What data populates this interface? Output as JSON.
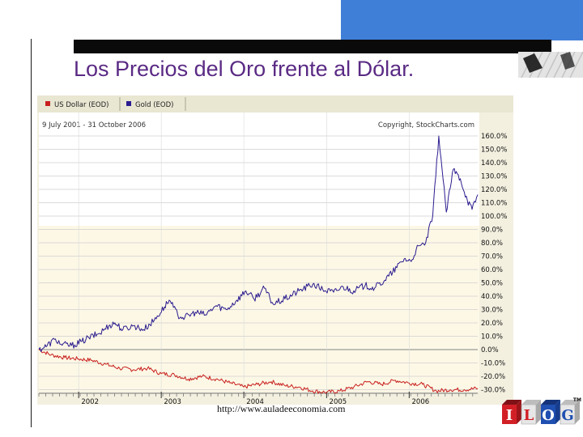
{
  "slide": {
    "title": "Los Precios del Oro frente al Dólar.",
    "url": "http://www.auladeeconomia.com",
    "logo_letters": [
      "I",
      "L",
      "O",
      "G"
    ],
    "logo_tm": "TM"
  },
  "colors": {
    "title": "#5a2a84",
    "gold_series": "#2b1c8f",
    "dollar_series": "#c8201e",
    "blue_block": "#3f7fd8",
    "logo_red": "#d21f26",
    "logo_blue": "#1f4fb0"
  },
  "chart_data": {
    "type": "line",
    "title": "9 July 2001 - 31 October 2006",
    "copyright": "Copyright, StockCharts.com",
    "y_unit": "%",
    "ylim": [
      -35,
      165
    ],
    "y_ticks": [
      "160.0%",
      "150.0%",
      "140.0%",
      "130.0%",
      "120.0%",
      "110.0%",
      "100.0%",
      "90.0%",
      "80.0%",
      "70.0%",
      "60.0%",
      "50.0%",
      "40.0%",
      "30.0%",
      "20.0%",
      "10.0%",
      "0.0%",
      "-10.0%",
      "-20.0%",
      "-30.0%"
    ],
    "x_range": [
      "2001-07-09",
      "2006-10-31"
    ],
    "x_ticks": [
      "2002",
      "2003",
      "2004",
      "2005",
      "2006"
    ],
    "grid": true,
    "legend_placement": "top-left",
    "series": [
      {
        "name": "US Dollar (EOD)",
        "points": [
          [
            "2001-07-09",
            0
          ],
          [
            "2001-09-01",
            -4
          ],
          [
            "2001-11-01",
            -6
          ],
          [
            "2002-01-01",
            -7
          ],
          [
            "2002-03-01",
            -8
          ],
          [
            "2002-05-01",
            -11
          ],
          [
            "2002-07-01",
            -14
          ],
          [
            "2002-09-01",
            -15
          ],
          [
            "2002-11-01",
            -14
          ],
          [
            "2003-01-01",
            -18
          ],
          [
            "2003-03-01",
            -19
          ],
          [
            "2003-05-01",
            -22
          ],
          [
            "2003-07-01",
            -20
          ],
          [
            "2003-09-01",
            -22
          ],
          [
            "2003-11-01",
            -25
          ],
          [
            "2004-01-01",
            -28
          ],
          [
            "2004-03-01",
            -26
          ],
          [
            "2004-05-01",
            -24
          ],
          [
            "2004-07-01",
            -27
          ],
          [
            "2004-09-01",
            -28
          ],
          [
            "2004-11-01",
            -31
          ],
          [
            "2005-01-01",
            -32
          ],
          [
            "2005-03-01",
            -31
          ],
          [
            "2005-05-01",
            -28
          ],
          [
            "2005-07-01",
            -24
          ],
          [
            "2005-09-01",
            -26
          ],
          [
            "2005-11-01",
            -23
          ],
          [
            "2006-01-01",
            -25
          ],
          [
            "2006-03-01",
            -26
          ],
          [
            "2006-05-01",
            -31
          ],
          [
            "2006-07-01",
            -30
          ],
          [
            "2006-09-01",
            -30
          ],
          [
            "2006-10-31",
            -29
          ]
        ]
      },
      {
        "name": "Gold (EOD)",
        "points": [
          [
            "2001-07-09",
            0
          ],
          [
            "2001-08-15",
            3
          ],
          [
            "2001-09-20",
            8
          ],
          [
            "2001-10-15",
            4
          ],
          [
            "2001-12-01",
            3
          ],
          [
            "2002-01-15",
            6
          ],
          [
            "2002-02-15",
            9
          ],
          [
            "2002-04-01",
            12
          ],
          [
            "2002-05-15",
            18
          ],
          [
            "2002-06-10",
            20
          ],
          [
            "2002-07-15",
            15
          ],
          [
            "2002-09-01",
            18
          ],
          [
            "2002-10-15",
            15
          ],
          [
            "2002-12-01",
            22
          ],
          [
            "2003-01-15",
            32
          ],
          [
            "2003-02-05",
            37
          ],
          [
            "2003-03-15",
            26
          ],
          [
            "2003-04-15",
            24
          ],
          [
            "2003-06-01",
            28
          ],
          [
            "2003-07-15",
            26
          ],
          [
            "2003-09-01",
            33
          ],
          [
            "2003-10-15",
            30
          ],
          [
            "2003-12-01",
            37
          ],
          [
            "2004-01-10",
            44
          ],
          [
            "2004-02-15",
            38
          ],
          [
            "2004-04-01",
            46
          ],
          [
            "2004-05-10",
            34
          ],
          [
            "2004-07-01",
            38
          ],
          [
            "2004-09-01",
            44
          ],
          [
            "2004-11-01",
            49
          ],
          [
            "2004-12-15",
            45
          ],
          [
            "2005-02-01",
            43
          ],
          [
            "2005-03-15",
            47
          ],
          [
            "2005-05-01",
            44
          ],
          [
            "2005-06-20",
            48
          ],
          [
            "2005-08-01",
            46
          ],
          [
            "2005-09-15",
            52
          ],
          [
            "2005-10-20",
            58
          ],
          [
            "2005-12-10",
            68
          ],
          [
            "2006-01-10",
            66
          ],
          [
            "2006-02-01",
            75
          ],
          [
            "2006-03-15",
            80
          ],
          [
            "2006-04-15",
            100
          ],
          [
            "2006-05-12",
            160
          ],
          [
            "2006-06-14",
            103
          ],
          [
            "2006-07-15",
            135
          ],
          [
            "2006-08-15",
            128
          ],
          [
            "2006-09-15",
            112
          ],
          [
            "2006-10-06",
            105
          ],
          [
            "2006-10-31",
            116
          ]
        ]
      }
    ]
  }
}
